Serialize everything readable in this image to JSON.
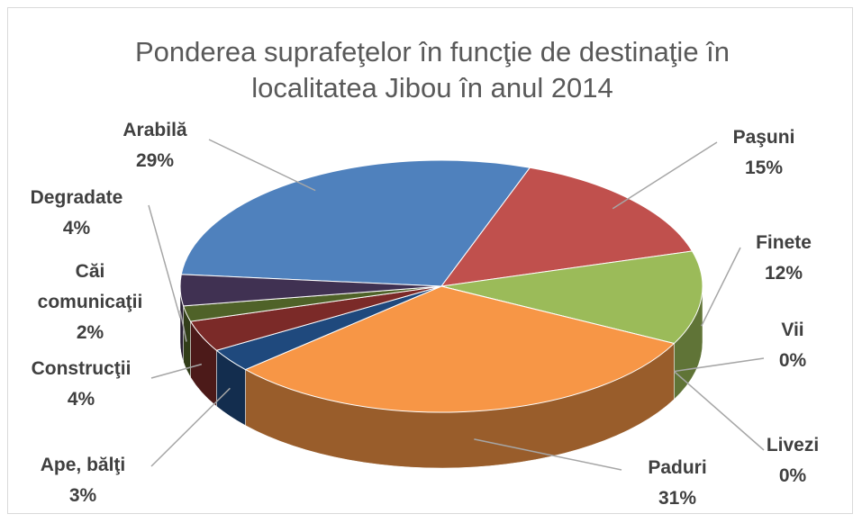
{
  "chart_data": {
    "type": "pie3d",
    "title": "Ponderea suprafeţelor în funcţie de destinaţie în localitatea Jibou în anul 2014",
    "categories": [
      "Arabilă",
      "Paşuni",
      "Finete",
      "Vii",
      "Livezi",
      "Paduri",
      "Ape, bălţi",
      "Construcţii",
      "Căi comunicaţii",
      "Degradate"
    ],
    "values": [
      29,
      15,
      12,
      0,
      0,
      31,
      3,
      4,
      2,
      4
    ],
    "value_labels": [
      "29%",
      "15%",
      "12%",
      "0%",
      "0%",
      "31%",
      "3%",
      "4%",
      "2%",
      "4%"
    ],
    "colors": [
      "#4f81bd",
      "#c0504d",
      "#9bbb59",
      "#8db3e2",
      "#4bacc6",
      "#f79646",
      "#1f497d",
      "#7b2a28",
      "#4f6228",
      "#403152"
    ]
  }
}
